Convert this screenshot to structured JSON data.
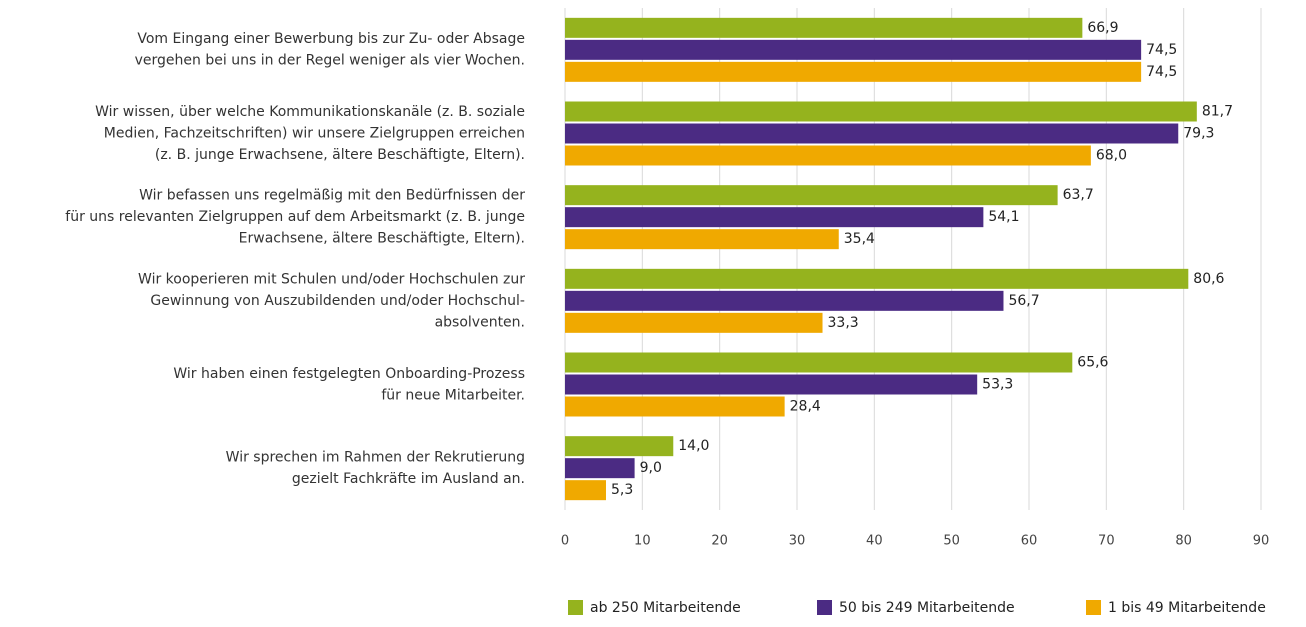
{
  "chart_data": {
    "type": "hbar",
    "categories": [
      [
        "Vom Eingang einer Bewerbung bis zur Zu- oder Absage",
        "vergehen bei uns in der Regel weniger als vier Wochen."
      ],
      [
        "Wir wissen, über welche Kommunikationskanäle (z. B. soziale",
        "Medien, Fachzeitschriften) wir unsere Zielgruppen erreichen",
        "(z. B. junge Erwachsene, ältere Beschäftigte, Eltern)."
      ],
      [
        "Wir befassen uns regelmäßig mit den Bedürfnissen der",
        "für uns relevanten Zielgruppen auf dem Arbeitsmarkt (z. B. junge",
        "Erwachsene, ältere Beschäftigte, Eltern)."
      ],
      [
        "Wir kooperieren mit Schulen und/oder Hochschulen zur",
        "Gewinnung von Auszubildenden und/oder Hochschul-",
        "absolventen."
      ],
      [
        "Wir haben einen festgelegten Onboarding-Prozess",
        "für neue Mitarbeiter."
      ],
      [
        "Wir sprechen im Rahmen der Rekrutierung",
        "gezielt Fachkräfte im Ausland an."
      ]
    ],
    "series": [
      {
        "name": "ab 250 Mitarbeitende",
        "color": "#95b31e",
        "values": [
          66.9,
          81.7,
          63.7,
          80.6,
          65.6,
          14.0
        ],
        "value_labels": [
          "66,9",
          "81,7",
          "63,7",
          "80,6",
          "65,6",
          "14,0"
        ]
      },
      {
        "name": "50 bis 249 Mitarbeitende",
        "color": "#4b2b83",
        "values": [
          74.5,
          79.3,
          54.1,
          56.7,
          53.3,
          9.0
        ],
        "value_labels": [
          "74,5",
          "79,3",
          "54,1",
          "56,7",
          "53,3",
          "9,0"
        ]
      },
      {
        "name": "1 bis 49 Mitarbeitende",
        "color": "#f0a900",
        "values": [
          74.5,
          68.0,
          35.4,
          33.3,
          28.4,
          5.3
        ],
        "value_labels": [
          "74,5",
          "68,0",
          "35,4",
          "33,3",
          "28,4",
          "5,3"
        ]
      }
    ],
    "xlim": [
      0,
      90
    ],
    "xticks": [
      0,
      10,
      20,
      30,
      40,
      50,
      60,
      70,
      80,
      90
    ],
    "grid": true,
    "legend": "bottom"
  }
}
